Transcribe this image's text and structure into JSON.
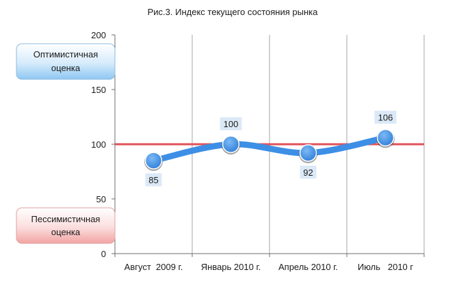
{
  "chart_data": {
    "type": "line",
    "title": "Рис.3. Индекс текущего состояния рынка",
    "categories": [
      "Август  2009 г.",
      "Январь 2010 г.",
      "Апрель 2010 г.",
      "Июль   2010 г"
    ],
    "series": [
      {
        "values": [
          85,
          100,
          92,
          106
        ]
      }
    ],
    "data_labels": [
      "85",
      "100",
      "92",
      "106"
    ],
    "ylim": [
      0,
      200
    ],
    "yticks": [
      0,
      50,
      100,
      150,
      200
    ],
    "ytick_labels": [
      "0",
      "50",
      "100",
      "150",
      "200"
    ],
    "reference_line": {
      "value": 100,
      "color": "#e0525a"
    },
    "series_color": "#3d8fe6",
    "grid": "vertical separators between categories",
    "annotations": {
      "optimistic": {
        "line1": "Оптимистичная",
        "line2": "оценка"
      },
      "pessimistic": {
        "line1": "Пессимистичная",
        "line2": "оценка"
      }
    }
  }
}
